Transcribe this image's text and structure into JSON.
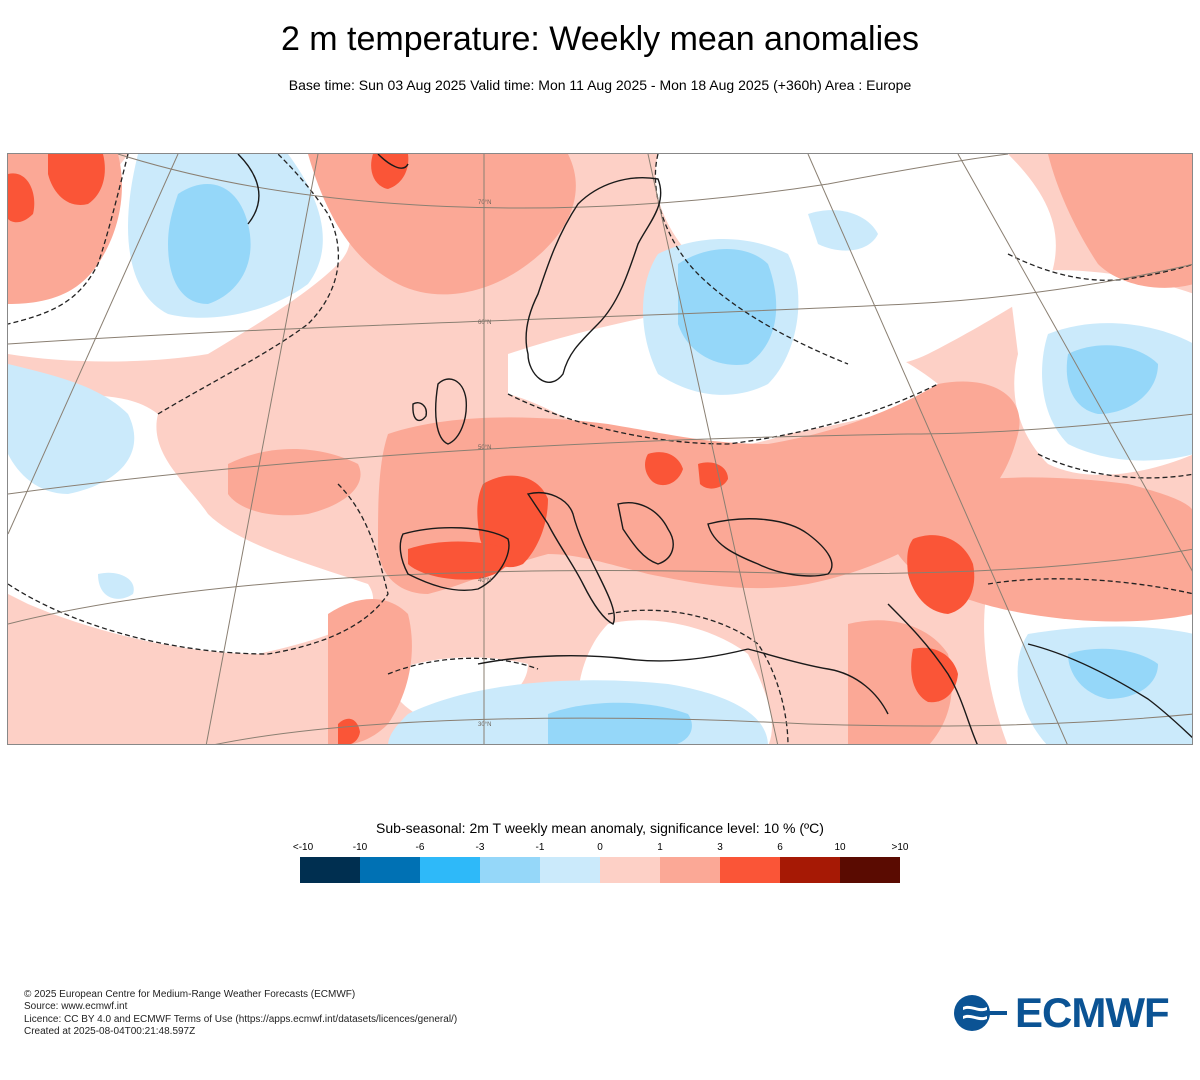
{
  "title": "2 m temperature: Weekly mean anomalies",
  "subtitle": "Base time: Sun 03 Aug 2025 Valid time: Mon 11 Aug 2025 - Mon 18 Aug 2025 (+360h) Area : Europe",
  "map": {
    "area": "Europe",
    "latitude_labels": [
      "70°N",
      "60°N",
      "50°N",
      "40°N",
      "30°N"
    ]
  },
  "legend": {
    "title": "Sub-seasonal: 2m T weekly mean anomaly, significance level: 10 % (ºC)",
    "ticks": [
      "<-10",
      "-10",
      "-6",
      "-3",
      "-1",
      "0",
      "1",
      "3",
      "6",
      "10",
      ">10"
    ],
    "colors": [
      "#002f50",
      "#0071b4",
      "#2eb9f9",
      "#95d7f9",
      "#cbeafb",
      "#fdd0c6",
      "#fba896",
      "#fa5537",
      "#a61905",
      "#5a0b01"
    ]
  },
  "footer": {
    "line1": "© 2025 European Centre for Medium-Range Weather Forecasts (ECMWF)",
    "line2": "Source: www.ecmwf.int",
    "line3": "Licence: CC BY 4.0 and ECMWF Terms of Use (https://apps.ecmwf.int/datasets/licences/general/)",
    "line4": "Created at 2025-08-04T00:21:48.597Z"
  },
  "logo": {
    "text": "ECMWF",
    "color": "#0b5394"
  }
}
